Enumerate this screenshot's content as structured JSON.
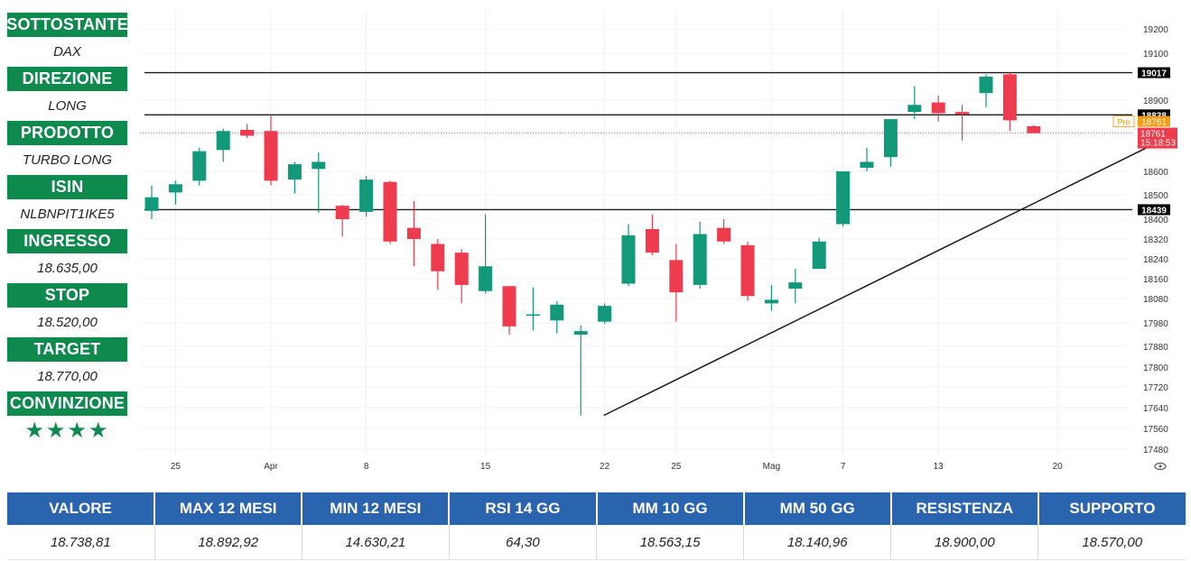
{
  "sidebar": {
    "items": [
      {
        "label": "SOTTOSTANTE",
        "value": "DAX"
      },
      {
        "label": "DIREZIONE",
        "value": "LONG"
      },
      {
        "label": "PRODOTTO",
        "value": "TURBO LONG"
      },
      {
        "label": "ISIN",
        "value": "NLBNPIT1IKE5"
      },
      {
        "label": "INGRESSO",
        "value": "18.635,00"
      },
      {
        "label": "STOP",
        "value": "18.520,00"
      },
      {
        "label": "TARGET",
        "value": "18.770,00"
      },
      {
        "label": "CONVINZIONE",
        "value": "★★★★"
      }
    ]
  },
  "colors": {
    "header_green": "#0f8a4f",
    "header_blue": "#2b64ae",
    "up_candle": "#12997a",
    "down_candle": "#ee3b4d",
    "price_tag": "#ee3b4d",
    "pre_tag": "#f39c12"
  },
  "chart_data": {
    "type": "candlestick",
    "y_ticks": [
      19200,
      19100,
      18900,
      18600,
      18500,
      18400,
      18320,
      18240,
      18160,
      18080,
      17980,
      17880,
      17800,
      17720,
      17640,
      17560,
      17480
    ],
    "ylim": [
      17440,
      19250
    ],
    "x_labels": [
      {
        "index": 1,
        "label": "25"
      },
      {
        "index": 5,
        "label": "Apr"
      },
      {
        "index": 9,
        "label": "8"
      },
      {
        "index": 14,
        "label": "15"
      },
      {
        "index": 19,
        "label": "22"
      },
      {
        "index": 22,
        "label": "25"
      },
      {
        "index": 26,
        "label": "Mag"
      },
      {
        "index": 29,
        "label": "7"
      },
      {
        "index": 33,
        "label": "13"
      },
      {
        "index": 38,
        "label": "20"
      }
    ],
    "candles": [
      {
        "o": 18434,
        "h": 18540,
        "l": 18400,
        "c": 18490
      },
      {
        "o": 18510,
        "h": 18560,
        "l": 18460,
        "c": 18545
      },
      {
        "o": 18560,
        "h": 18700,
        "l": 18540,
        "c": 18685
      },
      {
        "o": 18690,
        "h": 18780,
        "l": 18640,
        "c": 18770
      },
      {
        "o": 18775,
        "h": 18800,
        "l": 18740,
        "c": 18750
      },
      {
        "o": 18770,
        "h": 18838,
        "l": 18540,
        "c": 18560
      },
      {
        "o": 18565,
        "h": 18640,
        "l": 18505,
        "c": 18630
      },
      {
        "o": 18610,
        "h": 18680,
        "l": 18425,
        "c": 18640
      },
      {
        "o": 18455,
        "h": 18460,
        "l": 18330,
        "c": 18400
      },
      {
        "o": 18430,
        "h": 18580,
        "l": 18410,
        "c": 18565
      },
      {
        "o": 18555,
        "h": 18560,
        "l": 18300,
        "c": 18310
      },
      {
        "o": 18365,
        "h": 18475,
        "l": 18210,
        "c": 18320
      },
      {
        "o": 18300,
        "h": 18320,
        "l": 18115,
        "c": 18190
      },
      {
        "o": 18265,
        "h": 18280,
        "l": 18060,
        "c": 18135
      },
      {
        "o": 18110,
        "h": 18420,
        "l": 18100,
        "c": 18210
      },
      {
        "o": 18130,
        "h": 18130,
        "l": 17930,
        "c": 17965
      },
      {
        "o": 18015,
        "h": 18125,
        "l": 17950,
        "c": 18015
      },
      {
        "o": 17990,
        "h": 18070,
        "l": 17935,
        "c": 18055
      },
      {
        "o": 17930,
        "h": 17970,
        "l": 17610,
        "c": 17945
      },
      {
        "o": 17985,
        "h": 18060,
        "l": 17975,
        "c": 18050
      },
      {
        "o": 18140,
        "h": 18380,
        "l": 18130,
        "c": 18335
      },
      {
        "o": 18360,
        "h": 18420,
        "l": 18255,
        "c": 18265
      },
      {
        "o": 18235,
        "h": 18300,
        "l": 17985,
        "c": 18105
      },
      {
        "o": 18135,
        "h": 18390,
        "l": 18120,
        "c": 18340
      },
      {
        "o": 18365,
        "h": 18400,
        "l": 18300,
        "c": 18310
      },
      {
        "o": 18295,
        "h": 18310,
        "l": 18070,
        "c": 18090
      },
      {
        "o": 18060,
        "h": 18135,
        "l": 18030,
        "c": 18075
      },
      {
        "o": 18120,
        "h": 18200,
        "l": 18060,
        "c": 18145
      },
      {
        "o": 18200,
        "h": 18325,
        "l": 18200,
        "c": 18310
      },
      {
        "o": 18380,
        "h": 18600,
        "l": 18370,
        "c": 18600
      },
      {
        "o": 18615,
        "h": 18700,
        "l": 18600,
        "c": 18640
      },
      {
        "o": 18660,
        "h": 18820,
        "l": 18620,
        "c": 18820
      },
      {
        "o": 18850,
        "h": 18960,
        "l": 18820,
        "c": 18880
      },
      {
        "o": 18890,
        "h": 18920,
        "l": 18810,
        "c": 18845
      },
      {
        "o": 18850,
        "h": 18880,
        "l": 18730,
        "c": 18840
      },
      {
        "o": 18930,
        "h": 19010,
        "l": 18870,
        "c": 19000
      },
      {
        "o": 19010,
        "h": 19017,
        "l": 18770,
        "c": 18815
      },
      {
        "o": 18790,
        "h": 18795,
        "l": 18761,
        "c": 18761
      }
    ],
    "horizontal_lines": [
      19017,
      18838,
      18439
    ],
    "dotted_line": 18761,
    "trendline": [
      {
        "index": 19,
        "value": 17610
      },
      {
        "index": 42,
        "value": 18720
      }
    ],
    "price_tags": [
      {
        "value": 19017,
        "text": "19017",
        "style": "black"
      },
      {
        "value": 18838,
        "text": "18838",
        "style": "black"
      },
      {
        "value": 18439,
        "text": "18439",
        "style": "black"
      },
      {
        "value": 18761,
        "text": "18761",
        "prefix": "Pre",
        "style": "pre"
      },
      {
        "value": 18761,
        "text": "18761",
        "sub": "15:18:53",
        "style": "red"
      }
    ]
  },
  "stats": {
    "headers": [
      "VALORE",
      "MAX 12 MESI",
      "MIN 12 MESI",
      "RSI 14 GG",
      "MM 10 GG",
      "MM 50 GG",
      "RESISTENZA",
      "SUPPORTO"
    ],
    "values": [
      "18.738,81",
      "18.892,92",
      "14.630,21",
      "64,30",
      "18.563,15",
      "18.140,96",
      "18.900,00",
      "18.570,00"
    ]
  }
}
